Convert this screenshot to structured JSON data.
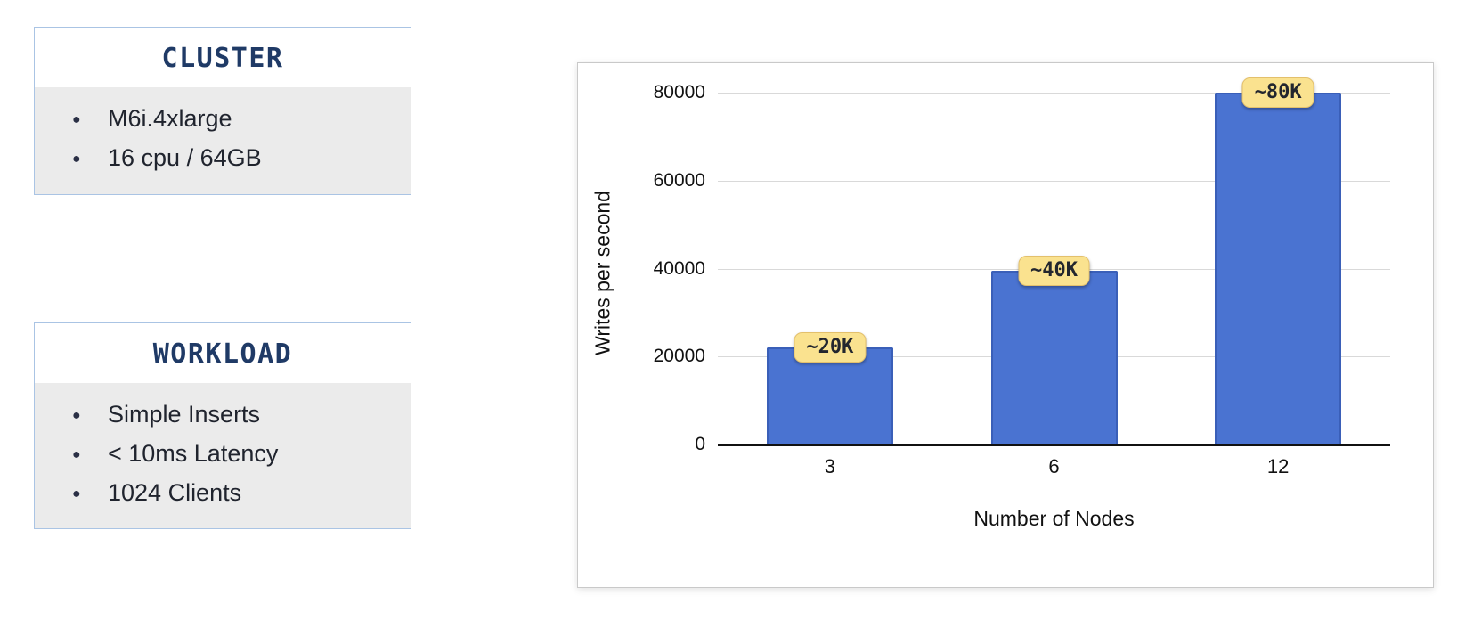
{
  "panels": {
    "cluster": {
      "title": "CLUSTER",
      "items": [
        "M6i.4xlarge",
        "16 cpu / 64GB"
      ]
    },
    "workload": {
      "title": "WORKLOAD",
      "items": [
        "Simple Inserts",
        "< 10ms Latency",
        "1024 Clients"
      ]
    }
  },
  "chart_data": {
    "type": "bar",
    "categories": [
      "3",
      "6",
      "12"
    ],
    "values": [
      22000,
      39500,
      80000
    ],
    "bar_labels": [
      "~20K",
      "~40K",
      "~80K"
    ],
    "title": "",
    "xlabel": "Number of Nodes",
    "ylabel": "Writes per second",
    "ylim": [
      0,
      80000
    ],
    "yticks": [
      0,
      20000,
      40000,
      60000,
      80000
    ],
    "grid": "horizontal",
    "legend": "none",
    "colors": {
      "bar": "#4a73d1",
      "bar_border": "#3a5fb8",
      "badge_bg": "#fae28f",
      "badge_text": "#23262e",
      "gridline": "#d9d9d9",
      "axis": "#111111"
    }
  },
  "theme": {
    "panel_border": "#aac4e4",
    "panel_header_text": "#1f3a66",
    "panel_body_bg": "#ebebeb",
    "panel_text": "#20242e",
    "background": "#ffffff"
  }
}
